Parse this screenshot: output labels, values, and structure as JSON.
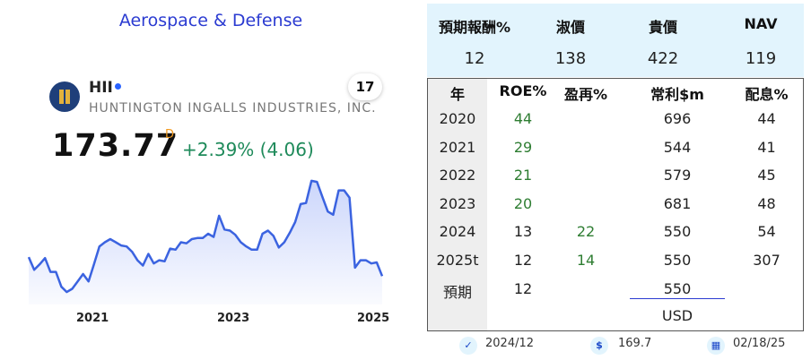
{
  "sector": "Aerospace & Defense",
  "stock": {
    "ticker": "HII",
    "company": "HUNTINGTON INGALLS INDUSTRIES, INC.",
    "price": "173.77",
    "price_suffix": "D",
    "change": "+2.39% (4.06)",
    "widget_button": "17"
  },
  "chart_data": {
    "type": "area",
    "x_tick_labels": [
      "2021",
      "2023",
      "2025"
    ],
    "values": [
      198,
      186,
      191,
      197,
      184,
      184,
      170,
      165,
      168,
      175,
      182,
      175,
      191,
      208,
      212,
      215,
      212,
      209,
      208,
      203,
      195,
      190,
      201,
      192,
      195,
      194,
      206,
      205,
      212,
      211,
      215,
      216,
      216,
      220,
      217,
      237,
      224,
      223,
      219,
      212,
      208,
      205,
      205,
      220,
      223,
      218,
      207,
      212,
      221,
      231,
      248,
      249,
      270,
      269,
      255,
      241,
      238,
      261,
      261,
      254,
      188,
      195,
      195,
      192,
      193,
      180
    ],
    "line_color": "#3b63e0",
    "fill_color": "#c9d4fb"
  },
  "valuation_header": {
    "labels": [
      "預期報酬%",
      "淑價",
      "貴價",
      "NAV"
    ],
    "values": [
      "12",
      "138",
      "422",
      "119"
    ]
  },
  "table": {
    "headers": [
      "年",
      "ROE%",
      "盈再%",
      "常利$m",
      "配息%"
    ],
    "rows": [
      [
        "2020",
        "44",
        "",
        "696",
        "44"
      ],
      [
        "2021",
        "29",
        "",
        "544",
        "41"
      ],
      [
        "2022",
        "21",
        "",
        "579",
        "45"
      ],
      [
        "2023",
        "20",
        "",
        "681",
        "48"
      ],
      [
        "2024",
        "13",
        "22",
        "550",
        "54"
      ],
      [
        "2025t",
        "12",
        "14",
        "550",
        "307"
      ],
      [
        "預期",
        "12",
        "",
        "550",
        ""
      ]
    ],
    "unit": "USD"
  },
  "footer": {
    "report": "2024/12",
    "price": "169.7",
    "date": "02/18/25"
  },
  "colors": {
    "accent_blue": "#2b3bd1",
    "header_bg": "#e2f4fd",
    "positive_green": "#1e8a5a"
  }
}
